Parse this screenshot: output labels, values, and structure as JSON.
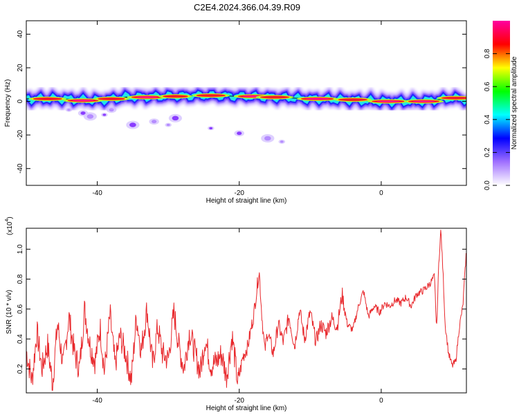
{
  "title": "C2E4.2024.366.04.39.R09",
  "chart_data": [
    {
      "type": "heatmap",
      "xlabel": "Height of straight line (km)",
      "ylabel": "Frequency (Hz)",
      "xlim": [
        -50,
        12
      ],
      "ylim": [
        -50,
        48
      ],
      "xticks": [
        {
          "v": -40,
          "label": "-40"
        },
        {
          "v": -20,
          "label": "-20"
        },
        {
          "v": 0,
          "label": "0"
        }
      ],
      "yticks": [
        {
          "v": -40,
          "label": "-40"
        },
        {
          "v": -20,
          "label": "-20"
        },
        {
          "v": 0,
          "label": "0"
        },
        {
          "v": 20,
          "label": "20"
        },
        {
          "v": 40,
          "label": "40"
        }
      ],
      "band_center": [
        [
          -50,
          1.5
        ],
        [
          -45,
          1.5
        ],
        [
          -40,
          0.5
        ],
        [
          -36,
          2.5
        ],
        [
          -30,
          3
        ],
        [
          -25,
          3.5
        ],
        [
          -20,
          3
        ],
        [
          -15,
          2.5
        ],
        [
          -10,
          1.5
        ],
        [
          -5,
          1
        ],
        [
          0,
          0
        ],
        [
          5,
          0
        ],
        [
          8,
          1
        ],
        [
          10,
          2
        ],
        [
          12,
          1
        ]
      ],
      "hotspots": [
        [
          -47,
          1.5,
          0.8
        ],
        [
          -42,
          0.5,
          0.9
        ],
        [
          -38,
          1.5,
          0.7
        ],
        [
          -33,
          2.5,
          0.9
        ],
        [
          -29,
          3,
          0.6
        ],
        [
          -24,
          3.5,
          0.8
        ],
        [
          -18,
          3,
          0.9
        ],
        [
          -15,
          2.5,
          0.8
        ],
        [
          -9,
          1.5,
          1.0
        ],
        [
          -4,
          1,
          0.8
        ],
        [
          1,
          0,
          1.0
        ],
        [
          6,
          0,
          0.9
        ],
        [
          10.5,
          2,
          0.8
        ]
      ],
      "scatter_blobs": [
        [
          -44,
          -5
        ],
        [
          -42,
          -7
        ],
        [
          -41,
          -9
        ],
        [
          -39,
          -8
        ],
        [
          -38,
          -5
        ],
        [
          -29,
          -10
        ],
        [
          -30,
          -14
        ],
        [
          -20,
          -19
        ],
        [
          -16,
          -22
        ],
        [
          -24,
          -16
        ],
        [
          -32,
          -12
        ],
        [
          -35,
          -14
        ],
        [
          -14,
          -24
        ]
      ],
      "colorbar": {
        "label": "Normalized spectral amplitude",
        "range": [
          0,
          1
        ],
        "ticks": [
          {
            "v": 0,
            "label": "0.0"
          },
          {
            "v": 0.2,
            "label": "0.2"
          },
          {
            "v": 0.4,
            "label": "0.4"
          },
          {
            "v": 0.6,
            "label": "0.6"
          },
          {
            "v": 0.8,
            "label": "0.8"
          }
        ],
        "colors": [
          "#ffffff",
          "#a070ff",
          "#0000ff",
          "#00ffff",
          "#00ff00",
          "#ffff00",
          "#ff0000",
          "#ff00a0"
        ]
      }
    },
    {
      "type": "line",
      "xlabel": "Height of straight line (km)",
      "ylabel": "SNR (10 * v/v)",
      "scale_label": "(x10",
      "scale_exp": "4",
      "scale_close": ")",
      "xlim": [
        -50,
        12
      ],
      "ylim": [
        0.04,
        1.14
      ],
      "xticks": [
        {
          "v": -40,
          "label": "-40"
        },
        {
          "v": -20,
          "label": "-20"
        },
        {
          "v": 0,
          "label": "0"
        }
      ],
      "yticks": [
        {
          "v": 0.2,
          "label": "0.2"
        },
        {
          "v": 0.4,
          "label": "0.4"
        },
        {
          "v": 0.6,
          "label": "0.6"
        },
        {
          "v": 0.8,
          "label": "0.8"
        },
        {
          "v": 1.0,
          "label": "1.0"
        }
      ],
      "line_color": "#e8282c",
      "series": [
        {
          "x": [
            -50,
            -49.2,
            -48.5,
            -47.8,
            -47,
            -46.3,
            -45.6,
            -44.8,
            -44,
            -43.2,
            -42.5,
            -41.8,
            -41,
            -40.3,
            -39.6,
            -39,
            -38.2,
            -37.5,
            -36.8,
            -36,
            -35.2,
            -34.5,
            -33.8,
            -33,
            -32.2,
            -31.5,
            -30.8,
            -30,
            -29.2,
            -28.5,
            -27.8,
            -27,
            -26.2,
            -25.5,
            -24.8,
            -24,
            -23.2,
            -22.5,
            -21.8,
            -21,
            -20.2,
            -19.5,
            -18.8,
            -18,
            -17.6,
            -17.2,
            -16.8,
            -16.4,
            -16,
            -15.2,
            -14.5,
            -13.8,
            -13,
            -12.2,
            -11.5,
            -10.8,
            -10,
            -9.2,
            -8.5,
            -7.8,
            -7,
            -6.2,
            -5.5,
            -4.8,
            -4,
            -3.2,
            -2.5,
            -1.8,
            -1,
            -0.2,
            0.5,
            1.2,
            2,
            2.8,
            3.5,
            4.2,
            5,
            5.8,
            6.5,
            7,
            7.5,
            7.8,
            8.1,
            8.4,
            8.7,
            9,
            9.5,
            10,
            10.5,
            11,
            11.5,
            12
          ],
          "y": [
            0.32,
            0.12,
            0.45,
            0.2,
            0.36,
            0.1,
            0.5,
            0.22,
            0.55,
            0.3,
            0.2,
            0.6,
            0.35,
            0.25,
            0.48,
            0.18,
            0.56,
            0.22,
            0.42,
            0.3,
            0.12,
            0.55,
            0.32,
            0.6,
            0.22,
            0.48,
            0.3,
            0.26,
            0.58,
            0.35,
            0.2,
            0.45,
            0.3,
            0.18,
            0.4,
            0.22,
            0.25,
            0.3,
            0.15,
            0.42,
            0.1,
            0.28,
            0.35,
            0.55,
            0.7,
            0.86,
            0.55,
            0.32,
            0.45,
            0.3,
            0.5,
            0.38,
            0.55,
            0.35,
            0.6,
            0.4,
            0.58,
            0.38,
            0.5,
            0.44,
            0.54,
            0.48,
            0.7,
            0.5,
            0.46,
            0.62,
            0.72,
            0.55,
            0.62,
            0.58,
            0.64,
            0.62,
            0.66,
            0.64,
            0.68,
            0.62,
            0.7,
            0.72,
            0.75,
            0.78,
            0.82,
            0.45,
            0.9,
            1.13,
            0.85,
            0.5,
            0.3,
            0.22,
            0.25,
            0.48,
            0.62,
            1.0
          ]
        }
      ]
    }
  ]
}
